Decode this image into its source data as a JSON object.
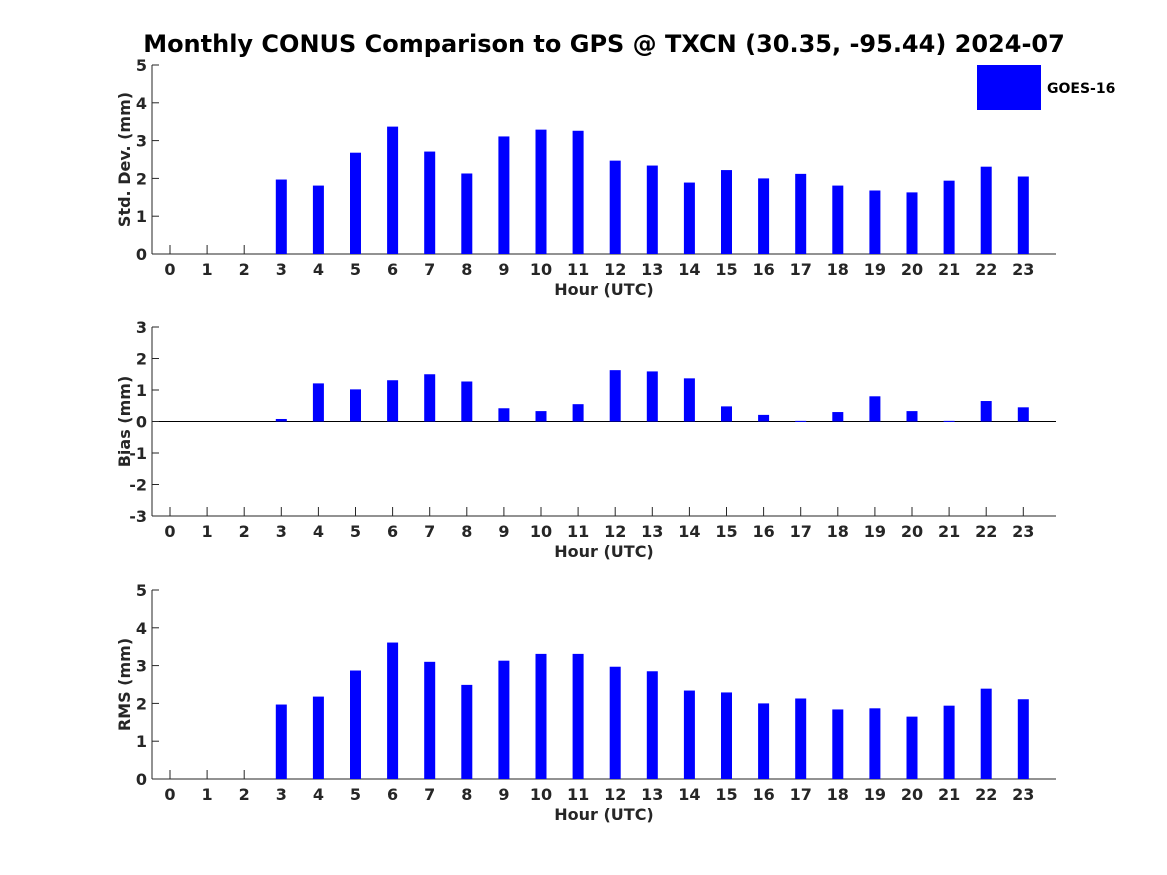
{
  "title": "Monthly CONUS Comparison to GPS @ TXCN (30.35, -95.44) 2024-07",
  "legend": {
    "label": "GOES-16",
    "color": "#0000ff"
  },
  "chart_data": [
    {
      "type": "bar",
      "title": "Monthly CONUS Comparison to GPS @ TXCN (30.35, -95.44) 2024-07",
      "xlabel": "Hour (UTC)",
      "ylabel": "Std. Dev. (mm)",
      "ylim": [
        0,
        5
      ],
      "yticks": [
        0,
        1,
        2,
        3,
        4,
        5
      ],
      "categories": [
        "0",
        "1",
        "2",
        "3",
        "4",
        "5",
        "6",
        "7",
        "8",
        "9",
        "10",
        "11",
        "12",
        "13",
        "14",
        "15",
        "16",
        "17",
        "18",
        "19",
        "20",
        "21",
        "22",
        "23"
      ],
      "series": [
        {
          "name": "GOES-16",
          "color": "#0000ff",
          "values": [
            0,
            0,
            0,
            1.97,
            1.81,
            2.68,
            3.37,
            2.71,
            2.13,
            3.11,
            3.29,
            3.26,
            2.47,
            2.34,
            1.89,
            2.22,
            2.0,
            2.12,
            1.81,
            1.68,
            1.63,
            1.94,
            2.31,
            2.05
          ]
        }
      ]
    },
    {
      "type": "bar",
      "xlabel": "Hour (UTC)",
      "ylabel": "Bias (mm)",
      "ylim": [
        -3,
        3
      ],
      "yticks": [
        -3,
        -2,
        -1,
        0,
        1,
        2,
        3
      ],
      "categories": [
        "0",
        "1",
        "2",
        "3",
        "4",
        "5",
        "6",
        "7",
        "8",
        "9",
        "10",
        "11",
        "12",
        "13",
        "14",
        "15",
        "16",
        "17",
        "18",
        "19",
        "20",
        "21",
        "22",
        "23"
      ],
      "series": [
        {
          "name": "GOES-16",
          "color": "#0000ff",
          "values": [
            0,
            0,
            0,
            0.08,
            1.21,
            1.02,
            1.31,
            1.5,
            1.27,
            0.42,
            0.33,
            0.55,
            1.63,
            1.59,
            1.37,
            0.48,
            0.21,
            0.02,
            0.3,
            0.8,
            0.33,
            0.02,
            0.65,
            0.45
          ]
        }
      ]
    },
    {
      "type": "bar",
      "xlabel": "Hour (UTC)",
      "ylabel": "RMS (mm)",
      "ylim": [
        0,
        5
      ],
      "yticks": [
        0,
        1,
        2,
        3,
        4,
        5
      ],
      "categories": [
        "0",
        "1",
        "2",
        "3",
        "4",
        "5",
        "6",
        "7",
        "8",
        "9",
        "10",
        "11",
        "12",
        "13",
        "14",
        "15",
        "16",
        "17",
        "18",
        "19",
        "20",
        "21",
        "22",
        "23"
      ],
      "series": [
        {
          "name": "GOES-16",
          "color": "#0000ff",
          "values": [
            0,
            0,
            0,
            1.97,
            2.18,
            2.87,
            3.61,
            3.1,
            2.49,
            3.13,
            3.31,
            3.31,
            2.97,
            2.85,
            2.34,
            2.29,
            2.0,
            2.13,
            1.84,
            1.87,
            1.65,
            1.94,
            2.39,
            2.11
          ]
        }
      ]
    }
  ]
}
